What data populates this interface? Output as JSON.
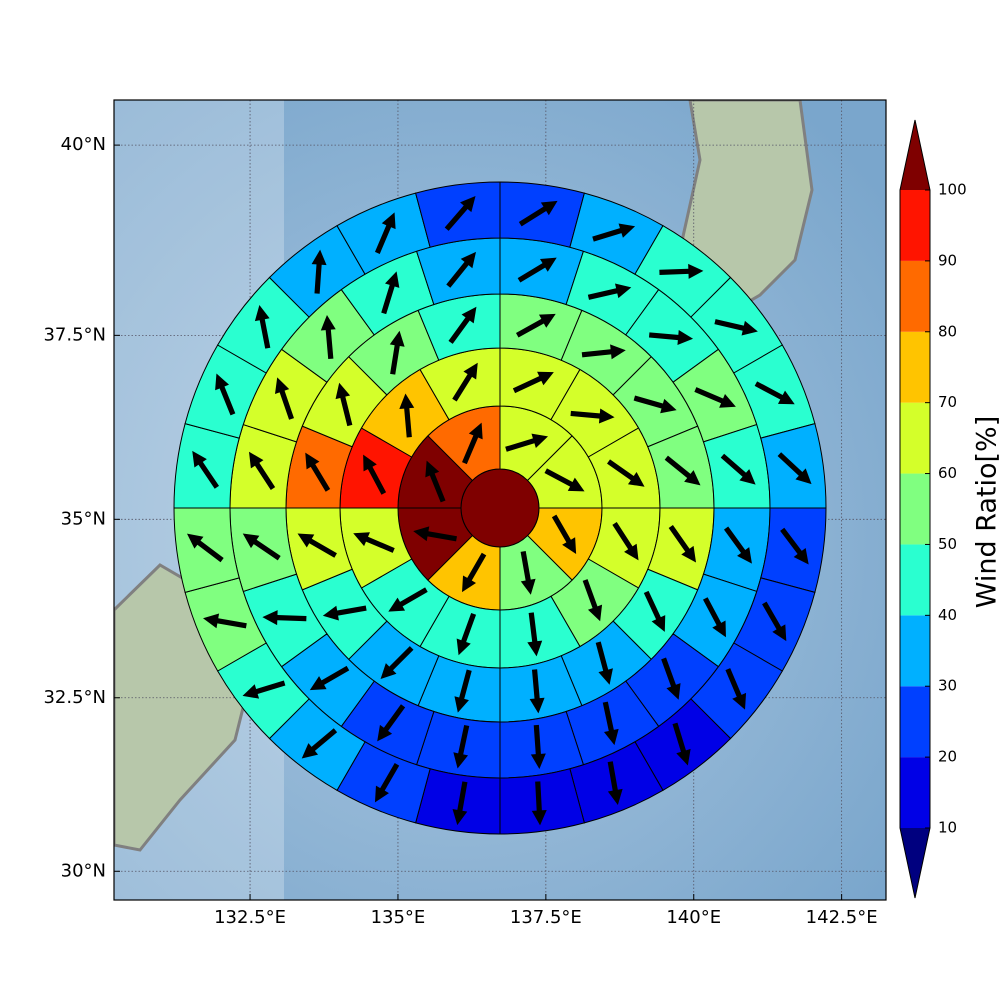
{
  "chart_data": {
    "type": "polarmap",
    "xlim": [
      130.2,
      143.25
    ],
    "ylim": [
      29.58,
      40.58
    ],
    "xticks": [
      {
        "value": 132.5,
        "label": "132.5°E"
      },
      {
        "value": 135,
        "label": "135°E"
      },
      {
        "value": 137.5,
        "label": "137.5°E"
      },
      {
        "value": 140,
        "label": "140°E"
      },
      {
        "value": 142.5,
        "label": "142.5°E"
      }
    ],
    "yticks": [
      {
        "value": 30,
        "label": "30°N"
      },
      {
        "value": 32.5,
        "label": "32.5°N"
      },
      {
        "value": 35,
        "label": "35°N"
      },
      {
        "value": 37.5,
        "label": "37.5°N"
      },
      {
        "value": 40,
        "label": "40°N"
      }
    ],
    "grid": true,
    "center_value": 100,
    "rings": [
      {
        "values": [
          65,
          65,
          75,
          55,
          75,
          100,
          100,
          85
        ],
        "directions": [
          73,
          118,
          150,
          170,
          210,
          280,
          338,
          23
        ]
      },
      {
        "values": [
          65,
          65,
          65,
          65,
          55,
          45,
          45,
          45,
          65,
          95,
          75,
          65
        ],
        "directions": [
          65,
          95,
          125,
          147,
          160,
          173,
          200,
          240,
          293,
          332,
          355,
          32
        ]
      },
      {
        "values": [
          55,
          55,
          55,
          55,
          65,
          45,
          35,
          35,
          35,
          35,
          45,
          65,
          85,
          65,
          55,
          45
        ],
        "directions": [
          61,
          84,
          106,
          129,
          145,
          155,
          165,
          175,
          195,
          225,
          260,
          300,
          329,
          346,
          9,
          36
        ]
      },
      {
        "values": [
          35,
          45,
          45,
          55,
          45,
          35,
          35,
          25,
          25,
          25,
          25,
          25,
          35,
          45,
          55,
          65,
          65,
          55,
          45,
          35
        ],
        "directions": [
          59,
          77,
          95,
          113,
          131,
          144,
          152,
          160,
          168,
          176,
          192,
          216,
          240,
          272,
          304,
          327,
          341,
          355,
          17,
          39
        ]
      },
      {
        "values": [
          25,
          35,
          45,
          45,
          45,
          35,
          25,
          25,
          25,
          15,
          15,
          15,
          15,
          25,
          35,
          45,
          55,
          55,
          45,
          45,
          45,
          35,
          35,
          25
        ],
        "directions": [
          58,
          73,
          88,
          103,
          118,
          133,
          143,
          150,
          157,
          163,
          170,
          177,
          190,
          210,
          230,
          253,
          280,
          307,
          326,
          338,
          349,
          4,
          23,
          41
        ]
      }
    ],
    "colorbar": {
      "label": "Wind Ratio[%]",
      "ticks": [
        10,
        20,
        30,
        40,
        50,
        60,
        70,
        80,
        90,
        100
      ],
      "colors": [
        "#0000e6",
        "#0040ff",
        "#00b0ff",
        "#2affd0",
        "#80ff80",
        "#d4ff2a",
        "#ffc400",
        "#ff6a00",
        "#ff1400"
      ],
      "under_color": "#00007f",
      "over_color": "#7f0000"
    }
  }
}
